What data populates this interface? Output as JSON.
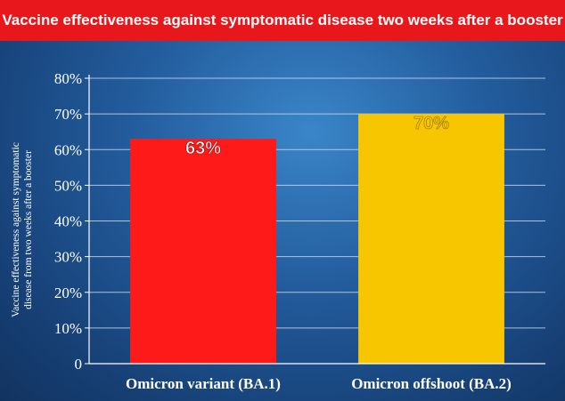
{
  "title": "Vaccine effectiveness against symptomatic disease two weeks after a booster",
  "colors": {
    "title_bg": "#e8171b",
    "bar_ba1": "#ff1a1a",
    "bar_ba2": "#f7c600",
    "label_ba1": "#ffffff",
    "label_ba2": "#f7c600",
    "axis_text": "#ffffff"
  },
  "chart_data": {
    "type": "bar",
    "title": "Vaccine effectiveness against symptomatic disease two weeks after a booster",
    "xlabel": "",
    "ylabel_lines": [
      "Vaccine effectiveness against symptomatic",
      "disease from two weeks after a booster"
    ],
    "categories": [
      "Omicron variant (BA.1)",
      "Omicron offshoot (BA.2)"
    ],
    "values": [
      63,
      70
    ],
    "data_labels": [
      "63%",
      "70%"
    ],
    "ylim": [
      0,
      80
    ],
    "yticks": [
      0,
      10,
      20,
      30,
      40,
      50,
      60,
      70,
      80
    ],
    "ytick_labels": [
      "0",
      "10%",
      "20%",
      "30%",
      "40%",
      "50%",
      "60%",
      "70%",
      "80%"
    ],
    "grid": true,
    "legend": "none"
  }
}
